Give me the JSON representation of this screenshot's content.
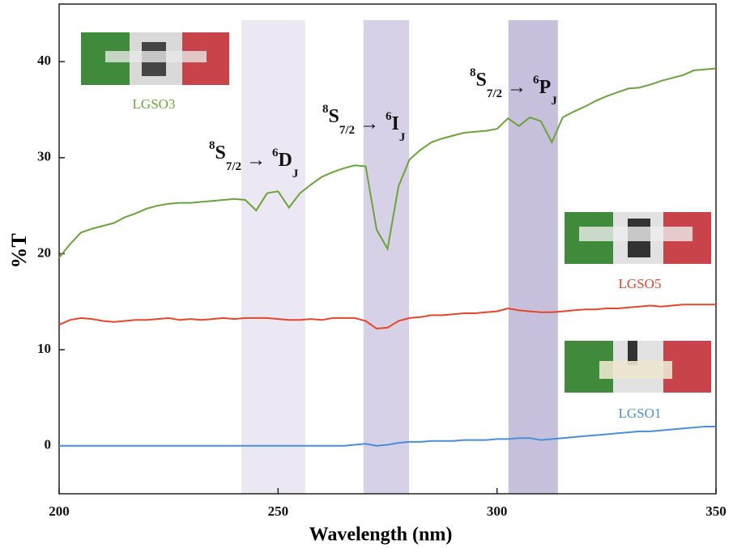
{
  "chart_data": {
    "type": "line",
    "x_label": "Wavelength (nm)",
    "y_label": "%T",
    "xlim": [
      200,
      350
    ],
    "ylim": [
      -5,
      46
    ],
    "xticks": [
      200,
      250,
      300,
      350
    ],
    "yticks": [
      0,
      10,
      20,
      30,
      40
    ],
    "bands": [
      {
        "range": [
          241.6,
          256.2
        ],
        "color": "#ebe8f3"
      },
      {
        "range": [
          269.5,
          279.9
        ],
        "color": "#d6d1e6"
      },
      {
        "range": [
          302.6,
          313.9
        ],
        "color": "#c6c0dc"
      }
    ],
    "annotations": [
      [
        "8",
        "S",
        "7/2",
        "→",
        "6",
        "D",
        "J"
      ],
      [
        "8",
        "S",
        "7/2",
        "→",
        "6",
        "I",
        "J"
      ],
      [
        "8",
        "S",
        "7/2",
        "→",
        "6",
        "P",
        "J"
      ]
    ],
    "x": [
      200,
      202.5,
      205,
      207.5,
      210,
      212.5,
      215,
      217.5,
      220,
      222.5,
      225,
      227.5,
      230,
      232.5,
      235,
      237.5,
      240,
      242.5,
      245,
      247.5,
      250,
      252.5,
      255,
      257.5,
      260,
      262.5,
      265,
      267.5,
      270,
      272.5,
      275,
      277.5,
      280,
      282.5,
      285,
      287.5,
      290,
      292.5,
      295,
      297.5,
      300,
      302.5,
      305,
      307.5,
      310,
      312.5,
      315,
      317.5,
      320,
      322.5,
      325,
      327.5,
      330,
      332.5,
      335,
      337.5,
      340,
      342.5,
      345,
      347.5,
      350
    ],
    "series": [
      {
        "name": "LGSO3",
        "color": "#6aa33a",
        "values": [
          19.6,
          21.0,
          22.2,
          22.6,
          22.9,
          23.2,
          23.8,
          24.2,
          24.7,
          25.0,
          25.2,
          25.3,
          25.3,
          25.4,
          25.5,
          25.6,
          25.7,
          25.6,
          24.5,
          26.3,
          26.5,
          24.8,
          26.3,
          27.2,
          28.0,
          28.5,
          28.9,
          29.2,
          29.1,
          22.5,
          20.5,
          27.0,
          29.8,
          30.8,
          31.6,
          32.0,
          32.3,
          32.6,
          32.7,
          32.8,
          33.0,
          34.1,
          33.3,
          34.2,
          33.8,
          31.6,
          34.2,
          34.8,
          35.3,
          35.9,
          36.4,
          36.8,
          37.2,
          37.3,
          37.6,
          38.0,
          38.3,
          38.6,
          39.1,
          39.2,
          39.3
        ]
      },
      {
        "name": "LGSO5",
        "color": "#e8452a",
        "values": [
          12.6,
          13.1,
          13.3,
          13.2,
          13.0,
          12.9,
          13.0,
          13.1,
          13.1,
          13.2,
          13.3,
          13.1,
          13.2,
          13.1,
          13.2,
          13.3,
          13.2,
          13.3,
          13.3,
          13.3,
          13.2,
          13.1,
          13.1,
          13.2,
          13.1,
          13.3,
          13.3,
          13.3,
          13.0,
          12.2,
          12.3,
          13.0,
          13.3,
          13.4,
          13.6,
          13.6,
          13.7,
          13.8,
          13.8,
          13.9,
          14.0,
          14.3,
          14.1,
          14.0,
          13.9,
          13.9,
          14.0,
          14.1,
          14.2,
          14.2,
          14.3,
          14.3,
          14.4,
          14.5,
          14.6,
          14.5,
          14.6,
          14.7,
          14.7,
          14.7,
          14.7
        ]
      },
      {
        "name": "LGSO1",
        "color": "#4a8ed8",
        "values": [
          0,
          0,
          0,
          0,
          0,
          0,
          0,
          0,
          0,
          0,
          0,
          0,
          0,
          0,
          0,
          0,
          0,
          0,
          0,
          0,
          0,
          0,
          0,
          0,
          0,
          0,
          0,
          0.1,
          0.2,
          0,
          0.1,
          0.3,
          0.4,
          0.4,
          0.5,
          0.5,
          0.5,
          0.6,
          0.6,
          0.6,
          0.7,
          0.7,
          0.8,
          0.8,
          0.6,
          0.7,
          0.8,
          0.9,
          1.0,
          1.1,
          1.2,
          1.3,
          1.4,
          1.5,
          1.5,
          1.6,
          1.7,
          1.8,
          1.9,
          2.0,
          2.0
        ]
      }
    ]
  }
}
